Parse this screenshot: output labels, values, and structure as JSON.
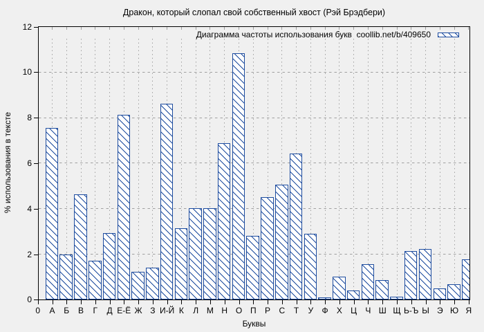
{
  "title": "Дракон, который слопал свой собственный хвост (Рэй Брэдбери)",
  "legend": {
    "label": "Диаграмма частоты использования букв  coollib.net/b/409650"
  },
  "axes": {
    "x_label": "Буквы",
    "y_label": "% использования в тексте",
    "x_origin_label": "0",
    "y_ticks": [
      0,
      2,
      4,
      6,
      8,
      10,
      12
    ]
  },
  "colors": {
    "background": "#f0f0f0",
    "bar_stroke": "#1c4b9e",
    "bar_fill": "#ffffff",
    "grid": "#a0a0a0",
    "text": "#000000"
  },
  "chart_data": {
    "type": "bar",
    "categories": [
      "А",
      "Б",
      "В",
      "Г",
      "Д",
      "Е-Ё",
      "Ж",
      "З",
      "И-Й",
      "К",
      "Л",
      "М",
      "Н",
      "О",
      "П",
      "Р",
      "С",
      "Т",
      "У",
      "Ф",
      "Х",
      "Ц",
      "Ч",
      "Ш",
      "Щ",
      "Ь-Ъ",
      "Ы",
      "Э",
      "Ю",
      "Я"
    ],
    "values": [
      7.52,
      1.97,
      4.62,
      1.71,
      2.93,
      8.1,
      1.2,
      1.41,
      8.61,
      3.13,
      4.02,
      4.02,
      6.86,
      10.81,
      2.78,
      4.49,
      5.05,
      6.41,
      2.88,
      0.09,
      1.0,
      0.39,
      1.55,
      0.85,
      0.12,
      2.13,
      2.22,
      0.47,
      0.67,
      1.75
    ],
    "title": "Дракон, который слопал свой собственный хвост (Рэй Брэдбери)",
    "xlabel": "Буквы",
    "ylabel": "% использования в тексте",
    "ylim": [
      0,
      12
    ],
    "grid": true,
    "legend_position": "top-right",
    "bar_style": "hatched"
  }
}
